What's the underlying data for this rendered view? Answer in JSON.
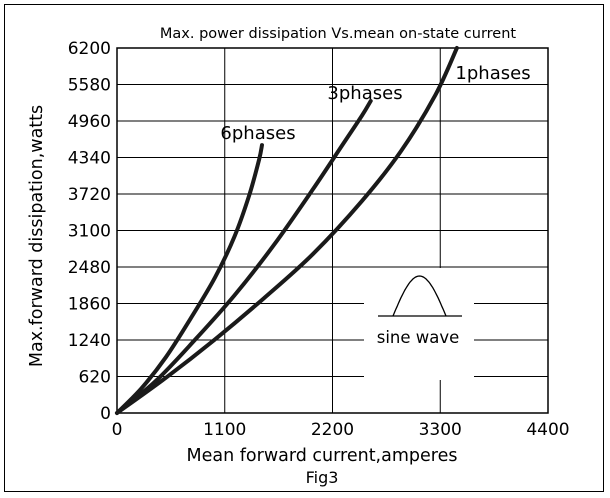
{
  "chart_data": {
    "type": "line",
    "title": "Max. power dissipation Vs.mean on-state current",
    "xlabel": "Mean forward current,amperes",
    "ylabel": "Max.forward dissipation,watts",
    "caption": "Fig3",
    "xlim": [
      0,
      4400
    ],
    "ylim": [
      0,
      6200
    ],
    "x_ticks": [
      "0",
      "1100",
      "2200",
      "3300",
      "4400"
    ],
    "y_ticks": [
      "0",
      "620",
      "1240",
      "1860",
      "2480",
      "3100",
      "3720",
      "4340",
      "4960",
      "5580",
      "6200"
    ],
    "grid": true,
    "series": [
      {
        "name": "6phases",
        "x": [
          0,
          250,
          500,
          750,
          1000,
          1200,
          1350,
          1450,
          1480
        ],
        "y": [
          0,
          420,
          950,
          1600,
          2300,
          3000,
          3700,
          4300,
          4550
        ]
      },
      {
        "name": "3phases",
        "x": [
          0,
          400,
          800,
          1200,
          1600,
          2000,
          2300,
          2500,
          2590
        ],
        "y": [
          0,
          550,
          1250,
          2000,
          2850,
          3800,
          4550,
          5050,
          5300
        ]
      },
      {
        "name": "1phases",
        "x": [
          0,
          500,
          1000,
          1500,
          2000,
          2500,
          2900,
          3250,
          3470
        ],
        "y": [
          0,
          600,
          1250,
          1950,
          2700,
          3600,
          4450,
          5400,
          6200
        ]
      }
    ],
    "inset": {
      "label": "sine wave"
    }
  }
}
